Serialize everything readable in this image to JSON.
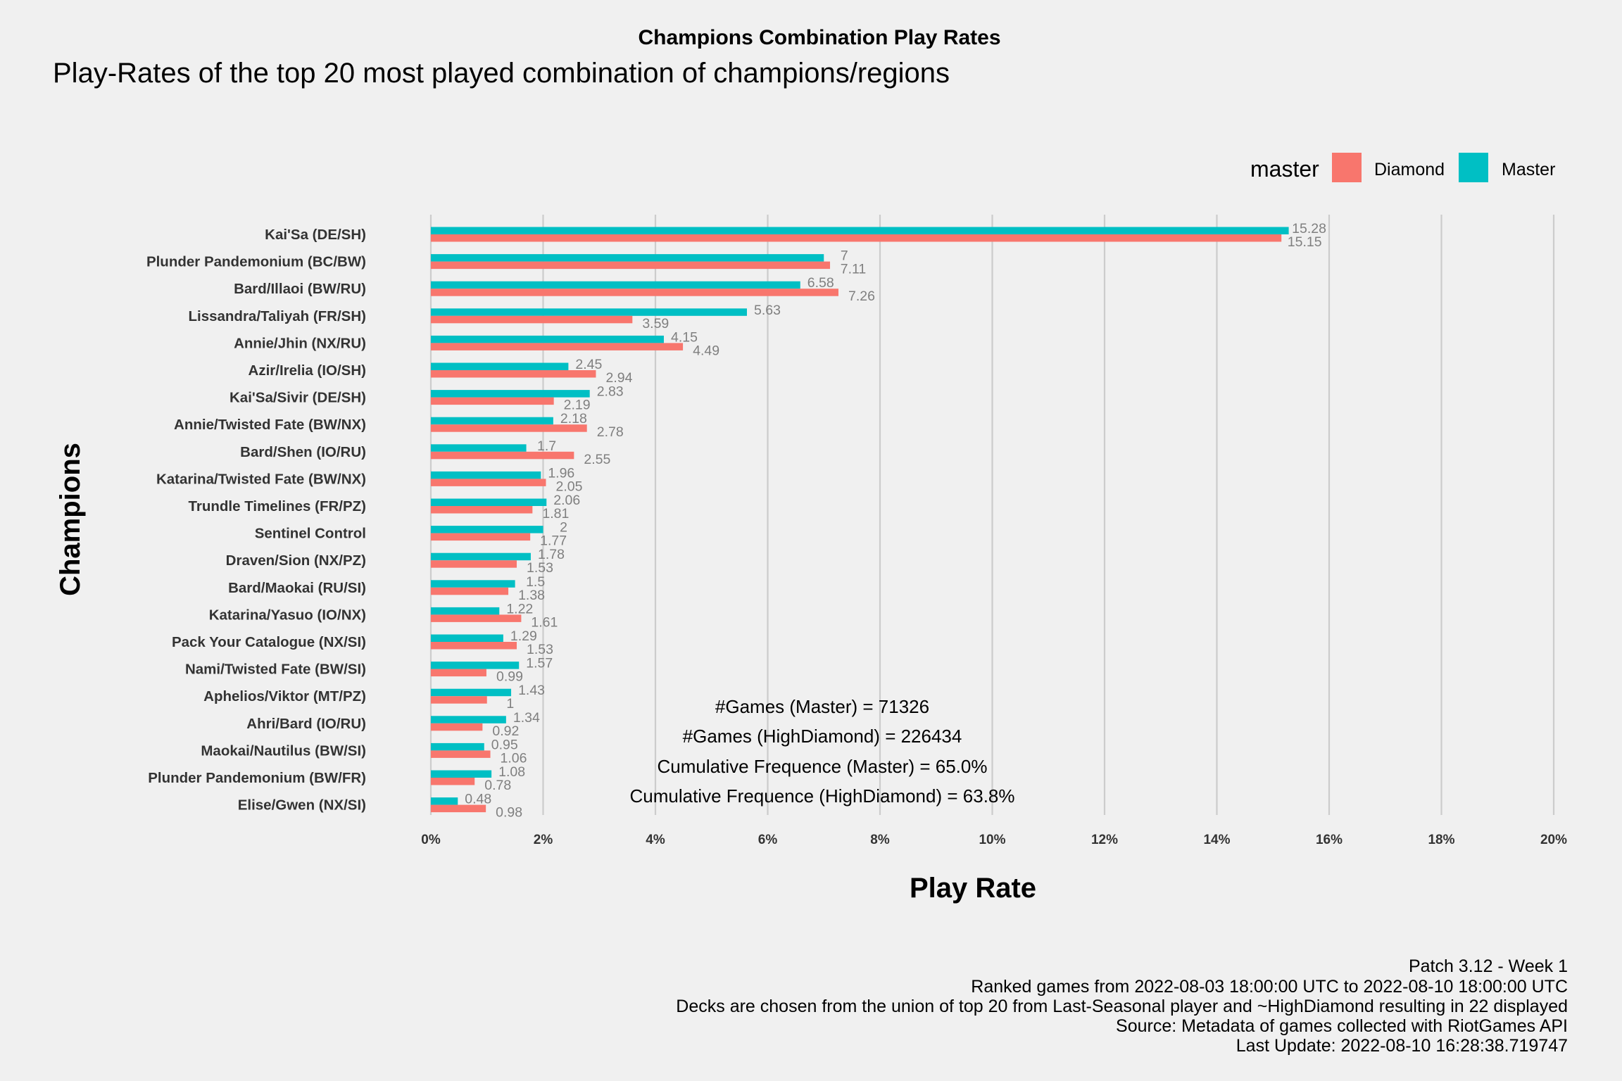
{
  "chart_data": {
    "type": "bar",
    "orientation": "horizontal",
    "title": "Champions Combination Play Rates",
    "subtitle": "Play-Rates of the top 20 most played combination of champions/regions",
    "xlabel": "Play Rate",
    "ylabel": "Champions",
    "xlim": [
      0,
      20
    ],
    "xticks": [
      0,
      2,
      4,
      6,
      8,
      10,
      12,
      14,
      16,
      18,
      20
    ],
    "xtick_labels": [
      "0%",
      "2%",
      "4%",
      "6%",
      "8%",
      "10%",
      "12%",
      "14%",
      "16%",
      "18%",
      "20%"
    ],
    "grid": "vertical-major",
    "legend": {
      "title": "master",
      "position": "top-right",
      "entries": [
        "Diamond",
        "Master"
      ]
    },
    "categories": [
      "Kai'Sa (DE/SH)",
      "Plunder Pandemonium (BC/BW)",
      "Bard/Illaoi (BW/RU)",
      "Lissandra/Taliyah (FR/SH)",
      "Annie/Jhin (NX/RU)",
      "Azir/Irelia (IO/SH)",
      "Kai'Sa/Sivir (DE/SH)",
      "Annie/Twisted Fate (BW/NX)",
      "Bard/Shen (IO/RU)",
      "Katarina/Twisted Fate (BW/NX)",
      "Trundle Timelines (FR/PZ)",
      "Sentinel Control",
      "Draven/Sion (NX/PZ)",
      "Bard/Maokai (RU/SI)",
      "Katarina/Yasuo (IO/NX)",
      "Pack Your Catalogue (NX/SI)",
      "Nami/Twisted Fate (BW/SI)",
      "Aphelios/Viktor (MT/PZ)",
      "Ahri/Bard (IO/RU)",
      "Maokai/Nautilus (BW/SI)",
      "Plunder Pandemonium (BW/FR)",
      "Elise/Gwen (NX/SI)"
    ],
    "series": [
      {
        "name": "Master",
        "color": "#00bfc4",
        "values": [
          15.28,
          7,
          6.58,
          5.63,
          4.15,
          2.45,
          2.83,
          2.18,
          1.7,
          1.96,
          2.06,
          2,
          1.78,
          1.5,
          1.22,
          1.29,
          1.57,
          1.43,
          1.34,
          0.95,
          1.08,
          0.48
        ],
        "labels": [
          "15.28",
          "7",
          "6.58",
          "5.63",
          "4.15",
          "2.45",
          "2.83",
          "2.18",
          "1.7",
          "1.96",
          "2.06",
          "2",
          "1.78",
          "1.5",
          "1.22",
          "1.29",
          "1.57",
          "1.43",
          "1.34",
          "0.95",
          "1.08",
          "0.48"
        ]
      },
      {
        "name": "Diamond",
        "color": "#f8766d",
        "values": [
          15.15,
          7.11,
          7.26,
          3.59,
          4.49,
          2.94,
          2.19,
          2.78,
          2.55,
          2.05,
          1.81,
          1.77,
          1.53,
          1.38,
          1.61,
          1.53,
          0.99,
          1,
          0.92,
          1.06,
          0.78,
          0.98
        ],
        "labels": [
          "15.15",
          "7.11",
          "7.26",
          "3.59",
          "4.49",
          "2.94",
          "2.19",
          "2.78",
          "2.55",
          "2.05",
          "1.81",
          "1.77",
          "1.53",
          "1.38",
          "1.61",
          "1.53",
          "0.99",
          "1",
          "0.92",
          "1.06",
          "0.78",
          "0.98"
        ]
      }
    ],
    "annotations": [
      "#Games (Master) = 71326",
      "#Games (HighDiamond) = 226434",
      "Cumulative Frequence (Master) = 65.0%",
      "Cumulative Frequence (HighDiamond) = 63.8%"
    ],
    "caption": [
      "Patch 3.12 - Week 1",
      "Ranked games from 2022-08-03 18:00:00 UTC to 2022-08-10 18:00:00 UTC",
      "Decks are chosen from the union of top 20 from Last-Seasonal player and ~HighDiamond resulting in 22 displayed",
      "Source: Metadata of games collected with RiotGames API",
      "Last Update: 2022-08-10 16:28:38.719747"
    ]
  }
}
